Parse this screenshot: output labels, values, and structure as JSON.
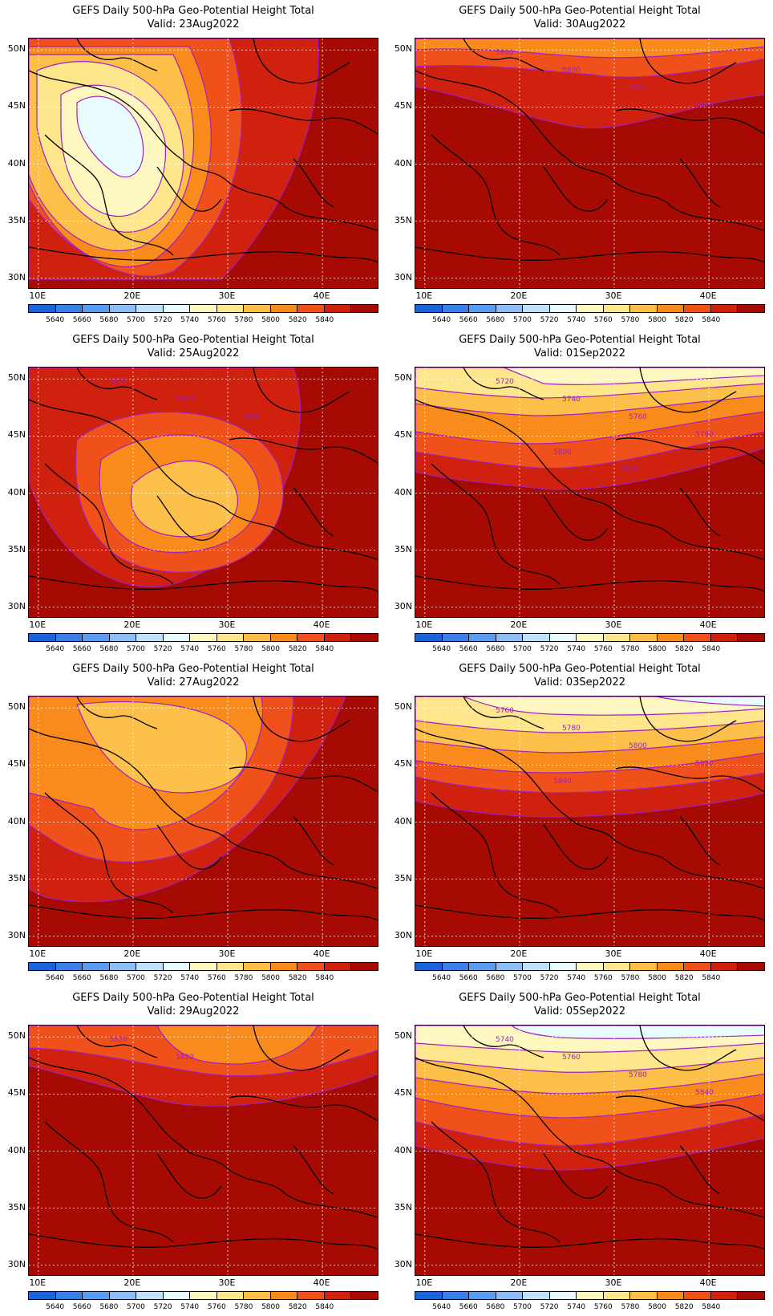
{
  "title": "GEFS Daily 500-hPa Geo-Potential Height Total",
  "panels": [
    {
      "valid": "Valid: 23Aug2022",
      "pattern": "trough",
      "labels": []
    },
    {
      "valid": "Valid: 30Aug2022",
      "pattern": "ridge-north",
      "labels": [
        "5800",
        "5800",
        "5820",
        "5820"
      ]
    },
    {
      "valid": "Valid: 25Aug2022",
      "pattern": "ring",
      "labels": [
        "5820",
        "5820",
        "5800"
      ]
    },
    {
      "valid": "Valid: 01Sep2022",
      "pattern": "zonal-a",
      "labels": [
        "5720",
        "5740",
        "5760",
        "5780",
        "5800",
        "5820"
      ]
    },
    {
      "valid": "Valid: 27Aug2022",
      "pattern": "broad",
      "labels": []
    },
    {
      "valid": "Valid: 03Sep2022",
      "pattern": "zonal-b",
      "labels": [
        "5760",
        "5780",
        "5800",
        "5820",
        "5840"
      ]
    },
    {
      "valid": "Valid: 29Aug2022",
      "pattern": "ridge-high",
      "labels": [
        "5820",
        "5820"
      ]
    },
    {
      "valid": "Valid: 05Sep2022",
      "pattern": "zonal-c",
      "labels": [
        "5740",
        "5760",
        "5780",
        "5840"
      ]
    }
  ],
  "lat_ticks": [
    "50N",
    "45N",
    "40N",
    "35N",
    "30N"
  ],
  "lon_ticks": [
    "10E",
    "20E",
    "30E",
    "40E"
  ],
  "colorbar": {
    "labels": [
      "5640",
      "5660",
      "5680",
      "5700",
      "5720",
      "5740",
      "5760",
      "5780",
      "5800",
      "5820",
      "5840"
    ],
    "colors": [
      "#1a63d9",
      "#3a7fe6",
      "#5b9bf0",
      "#8cbef5",
      "#bfe2fa",
      "#e8fbff",
      "#fff7c0",
      "#fde68c",
      "#fbbf4a",
      "#f98a1c",
      "#f0501a",
      "#d0200e",
      "#a60a02"
    ]
  },
  "colors": {
    "contour": "#a020c0"
  }
}
